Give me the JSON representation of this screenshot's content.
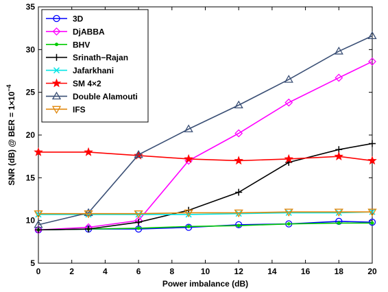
{
  "chart_data": {
    "type": "line",
    "xlabel": "Power imbalance (dB)",
    "ylabel": "SNR (dB) @ BER = 1×10",
    "ylabel_exponent": "−4",
    "xlim": [
      0,
      20
    ],
    "ylim": [
      5,
      35
    ],
    "xticks": [
      "0",
      "2",
      "4",
      "6",
      "8",
      "10",
      "12",
      "14",
      "16",
      "18",
      "20"
    ],
    "yticks": [
      "5",
      "10",
      "15",
      "20",
      "25",
      "30",
      "35"
    ],
    "grid": false,
    "legend_position": "top-left",
    "x": [
      0,
      3,
      6,
      9,
      12,
      15,
      18,
      20
    ],
    "series": [
      {
        "name": "3D",
        "color": "#0000ff",
        "marker": "circle",
        "values": [
          8.9,
          9.0,
          9.0,
          9.2,
          9.5,
          9.6,
          9.9,
          9.8
        ]
      },
      {
        "name": "DjABBA",
        "color": "#ff00ff",
        "marker": "diamond",
        "values": [
          8.9,
          9.2,
          10.0,
          17.0,
          20.2,
          23.8,
          26.7,
          28.6
        ]
      },
      {
        "name": "BHV",
        "color": "#00cc00",
        "marker": "dot",
        "values": [
          8.9,
          9.0,
          9.1,
          9.3,
          9.4,
          9.6,
          9.7,
          9.7
        ]
      },
      {
        "name": "Srinath−Rajan",
        "color": "#000000",
        "marker": "plus",
        "values": [
          8.9,
          9.0,
          9.8,
          11.2,
          13.3,
          16.8,
          18.3,
          19.0
        ]
      },
      {
        "name": "Jafarkhani",
        "color": "#00e5e5",
        "marker": "x",
        "values": [
          10.7,
          10.7,
          10.7,
          10.7,
          10.8,
          10.9,
          10.9,
          11.0
        ]
      },
      {
        "name": "SM 4×2",
        "color": "#ff0000",
        "marker": "star",
        "values": [
          18.0,
          18.0,
          17.6,
          17.2,
          17.0,
          17.2,
          17.5,
          17.0
        ]
      },
      {
        "name": "Double Alamouti",
        "color": "#3a4f75",
        "marker": "triangle-up",
        "values": [
          9.5,
          10.9,
          17.7,
          20.7,
          23.5,
          26.5,
          29.8,
          31.6
        ]
      },
      {
        "name": "IFS",
        "color": "#e0870b",
        "marker": "triangle-down",
        "values": [
          10.8,
          10.8,
          10.8,
          10.9,
          10.9,
          11.0,
          11.0,
          11.0
        ]
      }
    ]
  }
}
